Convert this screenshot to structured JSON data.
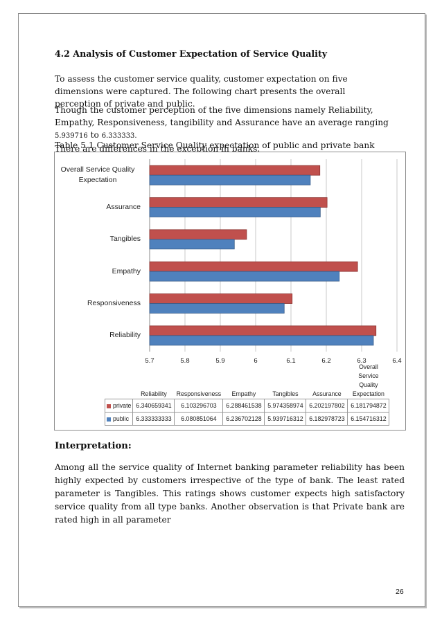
{
  "section_title": "4.2 Analysis of Customer Expectation of Service Quality",
  "paragraph1": "To assess the customer service quality, customer expectation on five dimensions were captured. The following chart presents the overall perception of private and public.",
  "paragraph2_lead": "Though the customer perception of the five dimensions namely Reliability, Empathy, Responsiveness, tangibility and Assurance have an average ranging ",
  "paragraph2_low": "5.939716",
  "paragraph2_to": " to ",
  "paragraph2_high": "6.333333.",
  "paragraph2_tail": "There are differences in the exception in banks.",
  "table_caption": "Table 5.1 Customer Service Quality expectation of public and private bank",
  "chart_data": {
    "type": "bar",
    "orientation": "horizontal",
    "categories": [
      "Reliability",
      "Responsiveness",
      "Empathy",
      "Tangibles",
      "Assurance",
      "Overall Service Quality Expectation"
    ],
    "series": [
      {
        "name": "private",
        "color": "#c0504d",
        "values": [
          6.340659341,
          6.103296703,
          6.288461538,
          5.974358974,
          6.202197802,
          6.181794872
        ]
      },
      {
        "name": "public",
        "color": "#4f81bd",
        "values": [
          6.333333333,
          6.080851064,
          6.236702128,
          5.939716312,
          6.182978723,
          6.154716312
        ]
      }
    ],
    "xlim": [
      5.7,
      6.4
    ],
    "xticks": [
      "5.7",
      "5.8",
      "5.9",
      "6",
      "6.1",
      "6.2",
      "6.3",
      "6.4"
    ],
    "grid": true,
    "data_table": {
      "headers": [
        "Reliability",
        "Responsiveness",
        "Empathy",
        "Tangibles",
        "Assurance",
        "Overall Service Quality Expectation"
      ],
      "rows": [
        {
          "label": "private",
          "cells": [
            "6.340659341",
            "6.103296703",
            "6.288461538",
            "5.974358974",
            "6.202197802",
            "6.181794872"
          ]
        },
        {
          "label": "public",
          "cells": [
            "6.333333333",
            "6.080851064",
            "6.236702128",
            "5.939716312",
            "6.182978723",
            "6.154716312"
          ]
        }
      ]
    }
  },
  "interpretation_title": "Interpretation:",
  "interpretation_text": "Among all the service quality of Internet banking parameter reliability has been highly expected by customers irrespective of the type of bank. The least rated parameter is Tangibles. This ratings shows customer expects high satisfactory service quality from all type banks. Another observation is that Private bank are rated high in all parameter",
  "page_number": "26"
}
